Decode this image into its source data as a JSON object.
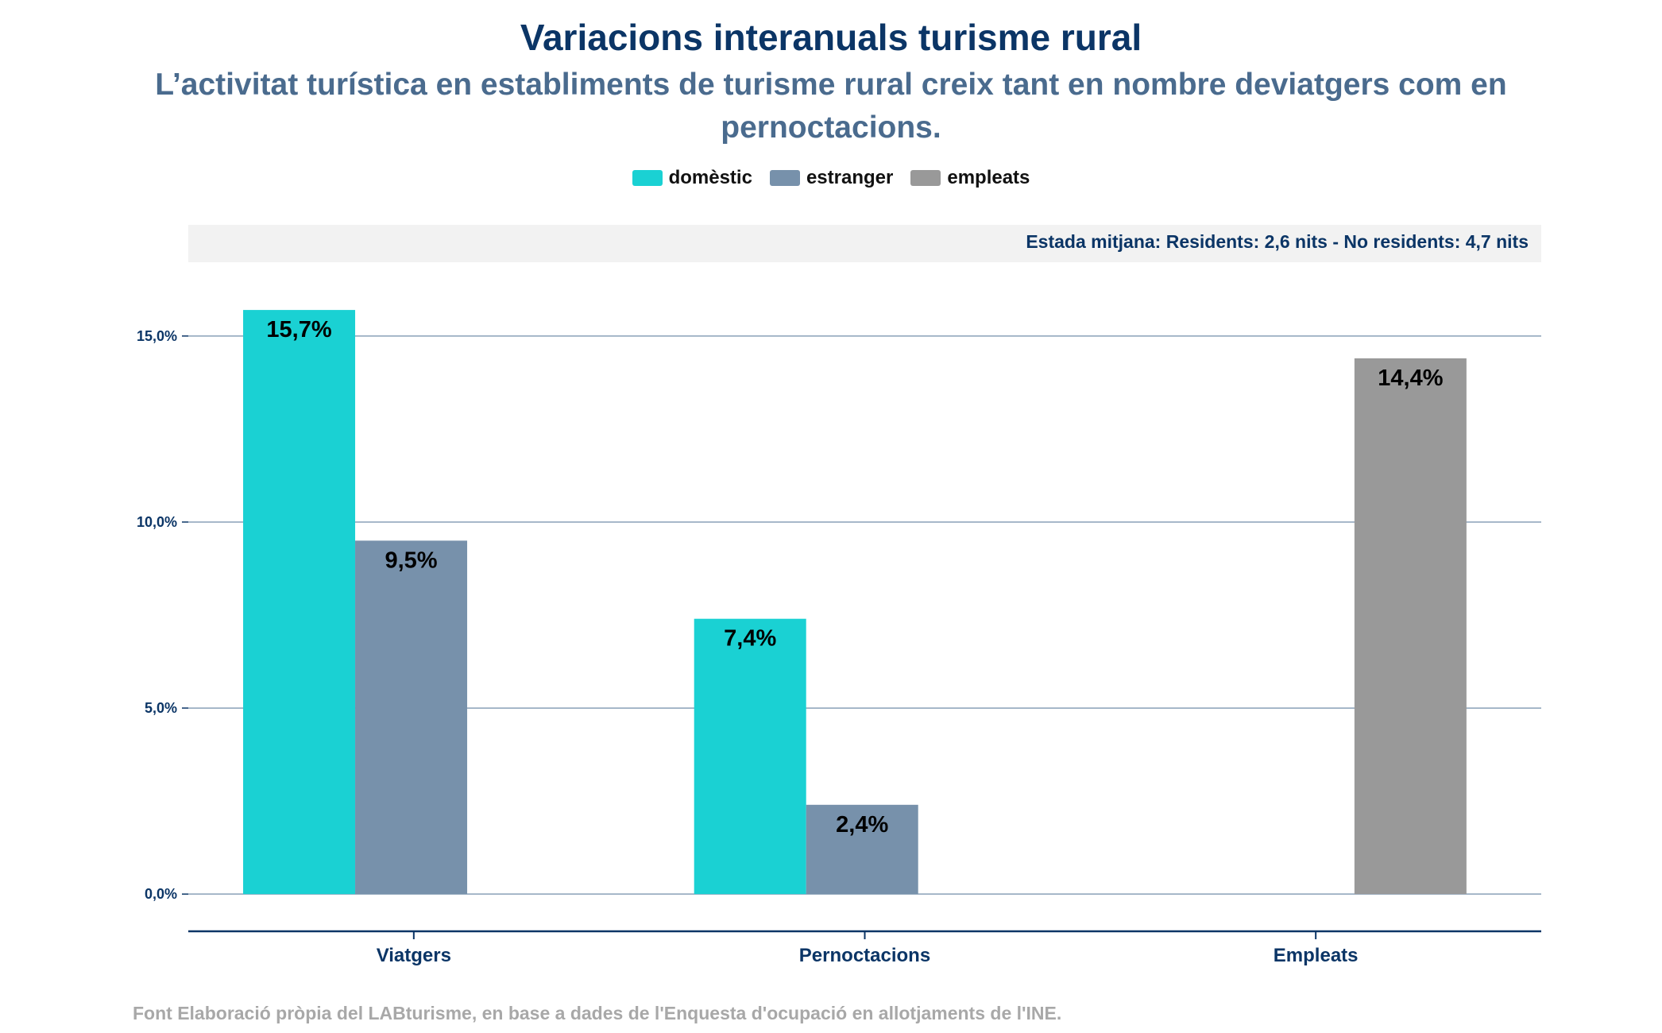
{
  "chart_data": {
    "type": "bar",
    "title": "Variacions interanuals turisme rural",
    "subtitle": "L’activitat turística en establiments de turisme rural creix tant en nombre deviatgers com en pernoctacions.",
    "note": "Estada mitjana: Residents: 2,6 nits - No residents: 4,7 nits",
    "categories": [
      "Viatgers",
      "Pernoctacions",
      "Empleats"
    ],
    "series": [
      {
        "name": "domèstic",
        "color": "#1ad1d3",
        "values": [
          15.7,
          7.4,
          null
        ],
        "labels": [
          "15,7%",
          "7,4%",
          ""
        ]
      },
      {
        "name": "estranger",
        "color": "#7791ab",
        "values": [
          9.5,
          2.4,
          null
        ],
        "labels": [
          "9,5%",
          "2,4%",
          ""
        ]
      },
      {
        "name": "empleats",
        "color": "#999999",
        "values": [
          null,
          null,
          14.4
        ],
        "labels": [
          "",
          "",
          "14,4%"
        ]
      }
    ],
    "yticks": [
      0,
      5,
      10,
      15
    ],
    "ytick_labels": [
      "0,0%",
      "5,0%",
      "10,0%",
      "15,0%"
    ],
    "ylim": [
      -1,
      16.3
    ],
    "grid": true,
    "legend_position": "top-center",
    "source": "Font Elaboració pròpia del LABturisme, en base a dades de l'Enquesta d'ocupació en allotjaments de l'INE."
  }
}
